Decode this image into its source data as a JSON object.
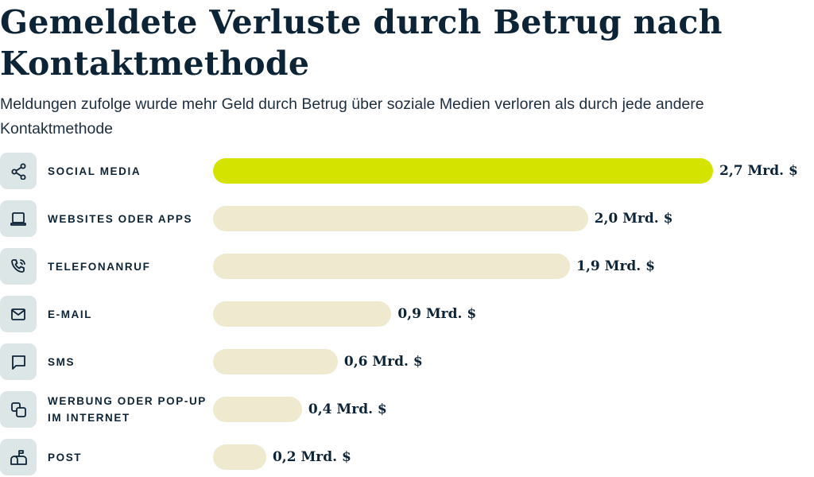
{
  "chart_data": {
    "type": "bar",
    "orientation": "horizontal",
    "title": "Gemeldete Verluste durch Betrug nach Kontaktmethode",
    "subtitle": "Meldungen zufolge wurde mehr Geld durch Betrug über soziale Medien verloren als durch jede andere Kontaktmethode",
    "unit": "Mrd. $",
    "categories": [
      "SOCIAL MEDIA",
      "WEBSITES ODER APPS",
      "TELEFONANRUF",
      "E-MAIL",
      "SMS",
      "WERBUNG ODER POP-UP IM INTERNET",
      "POST"
    ],
    "values": [
      2.7,
      2.0,
      1.9,
      0.9,
      0.6,
      0.4,
      0.2
    ],
    "value_labels": [
      "2,7 Mrd. $",
      "2,0 Mrd. $",
      "1,9 Mrd. $",
      "0,9 Mrd. $",
      "0,6 Mrd. $",
      "0,4 Mrd. $",
      "0,2 Mrd. $"
    ],
    "icons": [
      "share-icon",
      "laptop-icon",
      "phone-call-icon",
      "mail-icon",
      "chat-bubble-icon",
      "popup-windows-icon",
      "mailbox-icon"
    ],
    "highlight_index": 0,
    "colors": {
      "highlight": "#d5e300",
      "bar": "#efe9d0",
      "icon_bg": "#dde6e7",
      "text": "#0d2436"
    },
    "grid": false,
    "legend": "none"
  }
}
